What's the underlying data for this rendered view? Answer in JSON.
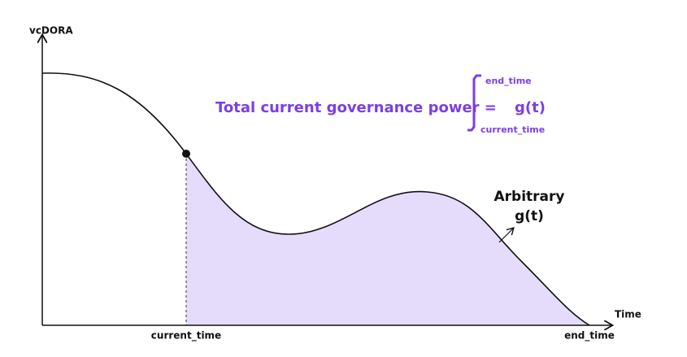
{
  "axes": {
    "y_label": "vcDORA",
    "x_label": "Time",
    "x_ticks": [
      "current_time",
      "end_time"
    ]
  },
  "formula": {
    "text": "Total current governance power =",
    "upper": "end_time",
    "lower": "current_time",
    "integrand": "g(t)"
  },
  "curve_label": {
    "line1": "Arbitrary",
    "line2": "g(t)"
  }
}
